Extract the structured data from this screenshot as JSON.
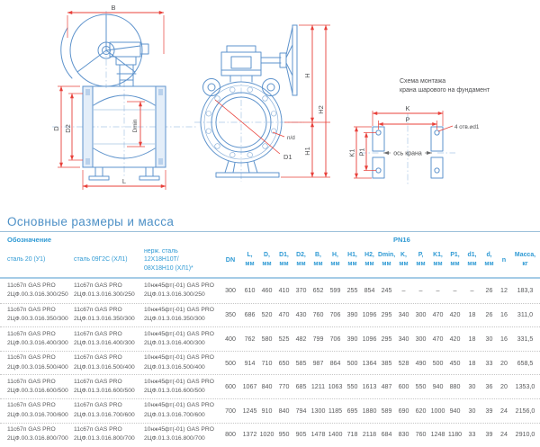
{
  "colors": {
    "drawing_blue": "#5e93cc",
    "centerline_blue": "#aac7e6",
    "dimension_red": "#e8403a",
    "label_gray": "#4d4e50",
    "title_blue": "#4d90c6",
    "header_blue": "#2f9ad4",
    "data_gray": "#58595b"
  },
  "diagrams": {
    "side_view": {
      "labels": {
        "b": "B",
        "d": "D",
        "d2": "D2",
        "dmin": "Dmin",
        "l": "L"
      }
    },
    "front_view": {
      "labels": {
        "h": "H",
        "h1": "H1",
        "h2": "H2",
        "nd": "n/d",
        "d1": "D1"
      }
    },
    "mounting": {
      "title_line1": "Схема монтажа",
      "title_line2": "крана шарового на фундамент",
      "labels": {
        "k": "K",
        "p": "P",
        "k1": "K1",
        "p1": "P1",
        "holes": "4 отв.⌀d1",
        "axis": "ось крана"
      }
    }
  },
  "table": {
    "title": "Основные размеры и масса",
    "header": {
      "designation": "Обозначение",
      "pn": "PN16",
      "materials": [
        "сталь 20 (У1)",
        "сталь 09Г2С (ХЛ1)",
        "нерж. сталь\n12Х18Н10Т/\n08Х18Н10 (ХЛ1)*"
      ],
      "dn": "DN",
      "dim_columns": [
        "L,",
        "D,",
        "D1,",
        "D2,",
        "B,",
        "H,",
        "H1,",
        "H2,",
        "Dmin,",
        "K,",
        "P,",
        "K1,",
        "P1,",
        "d1,",
        "d,"
      ],
      "unit": "мм",
      "n": "n",
      "mass": "Масса,\nкг"
    },
    "rows": [
      {
        "names": [
          "11с67п GAS PRO\n2ЦФ.00.3.016.300/250",
          "11с67п GAS PRO\n2ЦФ.01.3.016.300/250",
          "10нж45фт(-01) GAS PRO\n2ЦФ.01.3.016.300/250"
        ],
        "dn": "300",
        "values": [
          "610",
          "460",
          "410",
          "370",
          "652",
          "599",
          "255",
          "854",
          "245",
          "–",
          "–",
          "–",
          "–",
          "–",
          "26"
        ],
        "n": "12",
        "mass": "183,3"
      },
      {
        "names": [
          "11с67п GAS PRO\n2ЦФ.00.3.016.350/300",
          "11с67п GAS PRO\n2ЦФ.01.3.016.350/300",
          "10нж45фт(-01) GAS PRO\n2ЦФ.01.3.016.350/300"
        ],
        "dn": "350",
        "values": [
          "686",
          "520",
          "470",
          "430",
          "760",
          "706",
          "390",
          "1096",
          "295",
          "340",
          "300",
          "470",
          "420",
          "18",
          "26"
        ],
        "n": "16",
        "mass": "311,0"
      },
      {
        "names": [
          "11с67п GAS PRO\n2ЦФ.00.3.016.400/300",
          "11с67п GAS PRO\n2ЦФ.01.3.016.400/300",
          "10нж45фт(-01) GAS PRO\n2ЦФ.01.3.016.400/300"
        ],
        "dn": "400",
        "values": [
          "762",
          "580",
          "525",
          "482",
          "799",
          "706",
          "390",
          "1096",
          "295",
          "340",
          "300",
          "470",
          "420",
          "18",
          "30"
        ],
        "n": "16",
        "mass": "331,5"
      },
      {
        "names": [
          "11с67п GAS PRO\n2ЦФ.00.3.016.500/400",
          "11с67п GAS PRO\n2ЦФ.01.3.016.500/400",
          "10нж45фт(-01) GAS PRO\n2ЦФ.01.3.016.500/400"
        ],
        "dn": "500",
        "values": [
          "914",
          "710",
          "650",
          "585",
          "987",
          "864",
          "500",
          "1364",
          "385",
          "528",
          "490",
          "500",
          "450",
          "18",
          "33"
        ],
        "n": "20",
        "mass": "658,5"
      },
      {
        "names": [
          "11с67п GAS PRO\n2ЦФ.00.3.016.600/500",
          "11с67п GAS PRO\n2ЦФ.01.3.016.600/500",
          "10нж45фт(-01) GAS PRO\n2ЦФ.01.3.016.600/500"
        ],
        "dn": "600",
        "values": [
          "1067",
          "840",
          "770",
          "685",
          "1211",
          "1063",
          "550",
          "1613",
          "487",
          "600",
          "550",
          "940",
          "880",
          "30",
          "36"
        ],
        "n": "20",
        "mass": "1353,0"
      },
      {
        "names": [
          "11с67п GAS PRO\n2ЦФ.00.3.016.700/600",
          "11с67п GAS PRO\n2ЦФ.01.3.016.700/600",
          "10нж45фт(-01) GAS PRO\n2ЦФ.01.3.016.700/600"
        ],
        "dn": "700",
        "values": [
          "1245",
          "910",
          "840",
          "794",
          "1300",
          "1185",
          "695",
          "1880",
          "589",
          "690",
          "620",
          "1000",
          "940",
          "30",
          "39"
        ],
        "n": "24",
        "mass": "2156,0"
      },
      {
        "names": [
          "11с67п GAS PRO\n2ЦФ.00.3.016.800/700",
          "11с67п GAS PRO\n2ЦФ.01.3.016.800/700",
          "10нж45фт(-01) GAS PRO\n2ЦФ.01.3.016.800/700"
        ],
        "dn": "800",
        "values": [
          "1372",
          "1020",
          "950",
          "905",
          "1478",
          "1400",
          "718",
          "2118",
          "684",
          "830",
          "760",
          "1248",
          "1180",
          "33",
          "39"
        ],
        "n": "24",
        "mass": "2910,0"
      }
    ]
  }
}
